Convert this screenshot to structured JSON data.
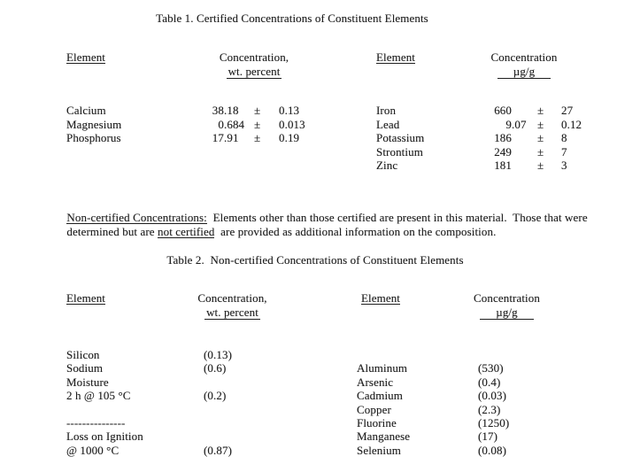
{
  "table1": {
    "title": "Table 1. Certified Concentrations of Constituent Elements",
    "col_headers": {
      "element_left": "Element",
      "concentration_left_line1": "Concentration,",
      "concentration_left_line2": "wt. percent",
      "element_right": "Element",
      "concentration_right_line1": "Concentration",
      "concentration_right_line2": "µg/g"
    },
    "left_rows": [
      {
        "element": "Calcium",
        "value": "38.18",
        "pm": "±",
        "uncertainty": "0.13"
      },
      {
        "element": "Magnesium",
        "value": "0.684",
        "pm": "±",
        "uncertainty": "0.013"
      },
      {
        "element": "Phosphorus",
        "value": "17.91",
        "pm": "±",
        "uncertainty": "0.19"
      }
    ],
    "right_rows": [
      {
        "element": "Iron",
        "value": "660",
        "pm": "±",
        "uncertainty": "27"
      },
      {
        "element": "Lead",
        "value": "9.07",
        "pm": "±",
        "uncertainty": "0.12"
      },
      {
        "element": "Potassium",
        "value": "186",
        "pm": "±",
        "uncertainty": "8"
      },
      {
        "element": "Strontium",
        "value": "249",
        "pm": "±",
        "uncertainty": "7"
      },
      {
        "element": "Zinc",
        "value": "181",
        "pm": "±",
        "uncertainty": "3"
      }
    ]
  },
  "note": {
    "line1_underlined": "Non-certified Concentrations:",
    "line1_rest": "  Elements other than those certified are present in this material.  Those that were",
    "line2_pre": "determined but are ",
    "line2_underlined": "not certified",
    "line2_rest": "  are provided as additional information on the composition."
  },
  "table2": {
    "title": "Table 2.  Non-certified Concentrations of Constituent Elements",
    "col_headers": {
      "element_left": "Element",
      "concentration_left_line1": "Concentration,",
      "concentration_left_line2": "wt. percent",
      "element_right": "Element",
      "concentration_right_line1": "Concentration",
      "concentration_right_line2": "µg/g"
    },
    "left_rows": [
      {
        "element": "Silicon",
        "value": "(0.13)"
      },
      {
        "element": "Sodium",
        "value": "(0.6)"
      },
      {
        "element": "Moisture",
        "value": ""
      },
      {
        "element": "2 h @ 105 °C",
        "value": "(0.2)"
      },
      {
        "element": "",
        "value": ""
      },
      {
        "element": "---------------",
        "value": ""
      },
      {
        "element": "Loss on Ignition",
        "value": ""
      },
      {
        "element": "@ 1000 °C",
        "value": "(0.87)"
      }
    ],
    "right_rows": [
      {
        "element": "",
        "value": ""
      },
      {
        "element": "Aluminum",
        "value": "(530)"
      },
      {
        "element": "Arsenic",
        "value": "(0.4)"
      },
      {
        "element": "Cadmium",
        "value": "(0.03)"
      },
      {
        "element": "Copper",
        "value": "(2.3)"
      },
      {
        "element": "Fluorine",
        "value": "(1250)"
      },
      {
        "element": "Manganese",
        "value": "(17)"
      },
      {
        "element": "Selenium",
        "value": "(0.08)"
      }
    ]
  }
}
